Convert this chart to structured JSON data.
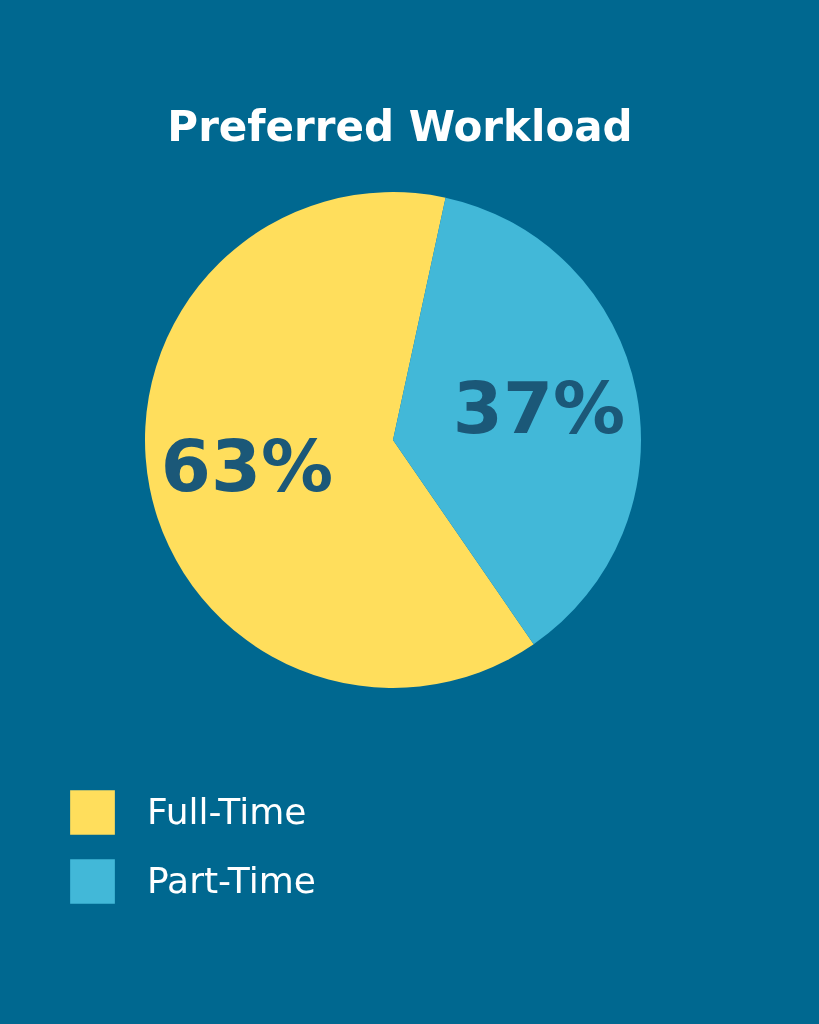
{
  "chart_data": {
    "type": "pie",
    "title": "Preferred Workload",
    "categories": [
      "Full-Time",
      "Part-Time"
    ],
    "values": [
      63,
      37
    ],
    "colors": [
      "#ffde5c",
      "#42b8d8"
    ],
    "value_labels": [
      "63%",
      "37%"
    ],
    "legend": "bottom left"
  }
}
